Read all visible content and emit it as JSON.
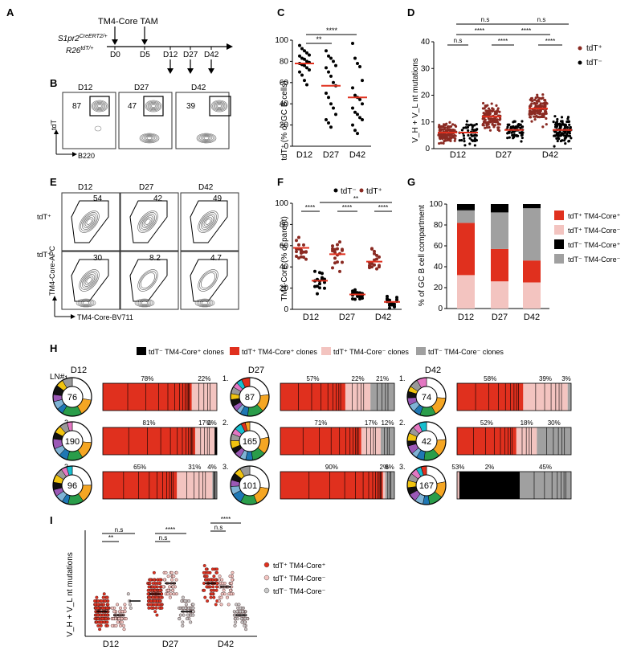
{
  "panel_labels": [
    "A",
    "B",
    "C",
    "D",
    "E",
    "F",
    "G",
    "H",
    "I"
  ],
  "A": {
    "line1": "S1pr2",
    "line1_sup": "CreERT2/+",
    "line2": "R26",
    "line2_sup": "tdT/+",
    "injection": "TM4-Core TAM",
    "days": [
      "D0",
      "D5",
      "D12",
      "D27",
      "D42"
    ]
  },
  "B": {
    "ylabel": "tdT",
    "xlabel": "B220",
    "days": [
      "D12",
      "D27",
      "D42"
    ],
    "percents": [
      "87",
      "47",
      "39"
    ]
  },
  "C": {
    "ylabel": "tdT⁺ (% of GC B cells)",
    "yticks": [
      "0",
      "20",
      "40",
      "60",
      "80",
      "100"
    ],
    "sig": [
      "**",
      "****"
    ]
  },
  "D": {
    "ylabel": "V_H + V_L nt mutations",
    "yticks": [
      "0",
      "10",
      "20",
      "30",
      "40"
    ],
    "sig_top": [
      "n.s",
      "n.s"
    ],
    "sig": [
      "n.s",
      "****",
      "****",
      "****",
      "****"
    ],
    "legend": [
      "tdT⁺",
      "tdT⁻"
    ]
  },
  "E": {
    "days": [
      "D12",
      "D27",
      "D42"
    ],
    "rows": [
      "tdT⁺",
      "tdT⁻"
    ],
    "percents_top": [
      "54",
      "42",
      "49"
    ],
    "percents_bottom": [
      "30",
      "8.2",
      "4.7"
    ],
    "ylabel": "TM4-Core-APC",
    "xlabel": "TM4-Core-BV711"
  },
  "F": {
    "ylabel": "TM4-Core (% of parent)",
    "yticks": [
      "0",
      "20",
      "40",
      "60",
      "80",
      "100"
    ],
    "legend": [
      "tdT⁻",
      "tdT⁺"
    ],
    "sig": [
      "****",
      "****",
      "****",
      "**"
    ]
  },
  "G": {
    "ylabel": "% of GC B cell compartment",
    "yticks": [
      "0",
      "20",
      "40",
      "60",
      "80",
      "100"
    ],
    "legend": [
      "tdT⁺ TM4-Core⁺",
      "tdT⁺ TM4-Core⁻",
      "tdT⁻ TM4-Core⁺",
      "tdT⁻ TM4-Core⁻"
    ]
  },
  "H": {
    "legend": [
      "tdT⁻ TM4-Core⁺ clones",
      "tdT⁺ TM4-Core⁺ clones",
      "tdT⁺ TM4-Core⁻ clones",
      "tdT⁻ TM4-Core⁻ clones"
    ],
    "ln_label": "LN#",
    "columns": [
      {
        "day": "D12",
        "rows": [
          {
            "n": "76",
            "pct": [
              "78%",
              "22%"
            ]
          },
          {
            "n": "190",
            "pct": [
              "81%",
              "17%",
              "2%"
            ]
          },
          {
            "n": "96",
            "pct": [
              "65%",
              "31%",
              "4%"
            ]
          }
        ]
      },
      {
        "day": "D27",
        "rows": [
          {
            "n": "87",
            "pct": [
              "57%",
              "22%",
              "21%"
            ]
          },
          {
            "n": "165",
            "pct": [
              "71%",
              "17%",
              "12%"
            ]
          },
          {
            "n": "101",
            "pct": [
              "90%",
              "2%",
              "8%"
            ]
          }
        ]
      },
      {
        "day": "D42",
        "rows": [
          {
            "n": "74",
            "pct": [
              "58%",
              "39%",
              "3%"
            ]
          },
          {
            "n": "42",
            "pct": [
              "52%",
              "18%",
              "30%"
            ]
          },
          {
            "n": "167",
            "pct": [
              "53%",
              "2%",
              "45%"
            ]
          }
        ]
      }
    ]
  },
  "I": {
    "ylabel": "V_H + V_L nt mutations",
    "sig": [
      "n.s",
      "**",
      "****",
      "n.s",
      "****",
      "n.s"
    ],
    "legend": [
      "tdT⁺ TM4-Core⁺",
      "tdT⁺ TM4-Core⁻",
      "tdT⁻ TM4-Core⁻"
    ]
  },
  "shared_days": [
    "D12",
    "D27",
    "D42"
  ],
  "chart_data": [
    {
      "panel": "C",
      "type": "scatter",
      "categories": [
        "D12",
        "D27",
        "D42"
      ],
      "ylim": [
        0,
        100
      ],
      "medians": [
        78,
        57,
        46
      ],
      "series": [
        {
          "values": [
            [
              95,
              92,
              90,
              88,
              86,
              85,
              83,
              82,
              80,
              79,
              78,
              77,
              76,
              74,
              72,
              70,
              67,
              62,
              58
            ],
            [
              90,
              85,
              83,
              80,
              76,
              74,
              70,
              66,
              60,
              57,
              50,
              46,
              40,
              36,
              30,
              25,
              22,
              18
            ],
            [
              97,
              83,
              78,
              75,
              62,
              55,
              48,
              46,
              44,
              40,
              36,
              32,
              30,
              27,
              25,
              20,
              15,
              12
            ]
          ]
        }
      ],
      "colors": {
        "marker": "#000000",
        "median": "#e0301e"
      }
    },
    {
      "panel": "D",
      "type": "scatter",
      "categories": [
        "D12",
        "D27",
        "D42"
      ],
      "ylim": [
        0,
        40
      ],
      "medians": {
        "tdT+": [
          6,
          12,
          15
        ],
        "tdT-": [
          6,
          7,
          7
        ]
      },
      "series": [
        {
          "name": "tdT⁺"
        },
        {
          "name": "tdT⁻"
        }
      ],
      "colors": {
        "tdT+": "#b03a2e",
        "tdT-": "#000000",
        "median": "#e0301e"
      }
    },
    {
      "panel": "F",
      "type": "scatter",
      "categories": [
        "D12",
        "D27",
        "D42"
      ],
      "ylim": [
        0,
        100
      ],
      "medians": {
        "tdT⁺": [
          58,
          52,
          45
        ],
        "tdT⁻": [
          27,
          14,
          7
        ]
      },
      "series": [
        {
          "name": "tdT⁻"
        },
        {
          "name": "tdT⁺"
        }
      ]
    },
    {
      "panel": "G",
      "type": "bar",
      "categories": [
        "D12",
        "D27",
        "D42"
      ],
      "ylim": [
        0,
        100
      ],
      "series": [
        {
          "name": "tdT⁺ TM4-Core⁻",
          "values": [
            32,
            26,
            25
          ]
        },
        {
          "name": "tdT⁺ TM4-Core⁺",
          "values": [
            50,
            31,
            21
          ]
        },
        {
          "name": "tdT⁻ TM4-Core⁻",
          "values": [
            12,
            35,
            50
          ]
        },
        {
          "name": "tdT⁻ TM4-Core⁺",
          "values": [
            6,
            8,
            4
          ]
        }
      ],
      "colors": {
        "tdT⁺ TM4-Core⁺": "#e0301e",
        "tdT⁺ TM4-Core⁻": "#f3c4c0",
        "tdT⁻ TM4-Core⁺": "#000000",
        "tdT⁻ TM4-Core⁻": "#a0a0a0"
      }
    },
    {
      "panel": "I",
      "type": "scatter",
      "categories": [
        "D12",
        "D27",
        "D42"
      ],
      "medians": {
        "tdT⁺ TM4-Core⁺": [
          7,
          12,
          15
        ],
        "tdT⁺ TM4-Core⁻": [
          6,
          15,
          14
        ],
        "tdT⁻ TM4-Core⁻": [
          10,
          7,
          6
        ]
      },
      "series": [
        {
          "name": "tdT⁺ TM4-Core⁺"
        },
        {
          "name": "tdT⁺ TM4-Core⁻"
        },
        {
          "name": "tdT⁻ TM4-Core⁻"
        }
      ]
    }
  ],
  "colors": {
    "red": "#e0301e",
    "pink": "#f3c4c0",
    "black": "#000000",
    "gray": "#a0a0a0",
    "dot_tdt": "#8a2a22"
  }
}
